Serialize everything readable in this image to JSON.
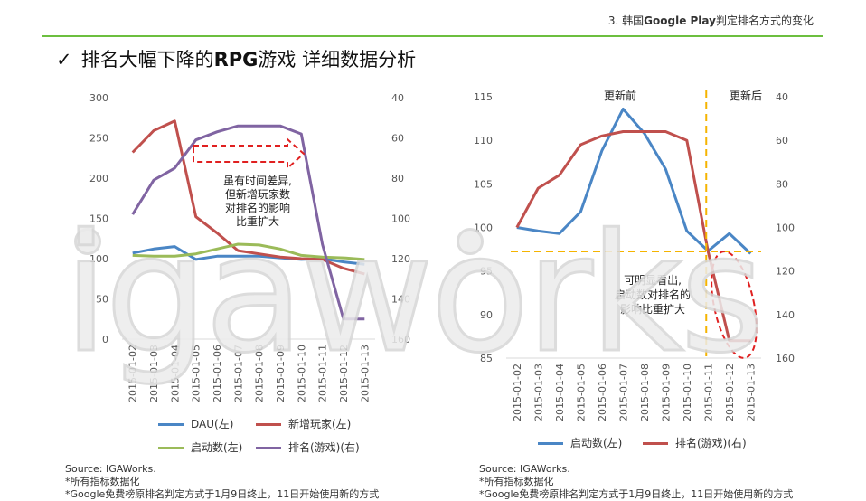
{
  "header": {
    "section_prefix": "3. 韩国",
    "section_bold": "Google Play",
    "section_suffix": "判定排名方式的变化",
    "title_check": "✓",
    "title_pre": "排名大幅下降的",
    "title_bold": "RPG",
    "title_post": "游戏  详细数据分析"
  },
  "watermark": "igaworks",
  "colors": {
    "blue": "#4a86c5",
    "red": "#c0504d",
    "green": "#9bbb59",
    "purple": "#8064a2",
    "orange": "#f5b400",
    "dashed_red": "#e02020",
    "rule_green": "#6cbf3f"
  },
  "chart_data": [
    {
      "type": "line",
      "x": [
        "2015-01-02",
        "2015-01-03",
        "2015-01-04",
        "2015-01-05",
        "2015-01-06",
        "2015-01-07",
        "2015-01-08",
        "2015-01-09",
        "2015-01-10",
        "2015-01-11",
        "2015-01-12",
        "2015-01-13"
      ],
      "y_left": {
        "range": [
          0,
          300
        ],
        "ticks": [
          "0",
          "50",
          "100",
          "150",
          "200",
          "250",
          "300"
        ]
      },
      "y_right": {
        "range": [
          40,
          160
        ],
        "reversed": true,
        "ticks": [
          "40",
          "60",
          "80",
          "100",
          "120",
          "140",
          "160"
        ]
      },
      "series": [
        {
          "name": "DAU(左)",
          "axis": "left",
          "color": "#4a86c5",
          "values": [
            107,
            112,
            115,
            99,
            103,
            103,
            103,
            101,
            99,
            100,
            96,
            93
          ]
        },
        {
          "name": "新增玩家(左)",
          "axis": "left",
          "color": "#c0504d",
          "values": [
            232,
            259,
            271,
            152,
            132,
            110,
            106,
            102,
            100,
            99,
            88,
            81
          ]
        },
        {
          "name": "启动数(左)",
          "axis": "left",
          "color": "#9bbb59",
          "values": [
            104,
            103,
            103,
            106,
            112,
            118,
            117,
            112,
            104,
            102,
            101,
            99
          ]
        },
        {
          "name": "排名(游戏)(右)",
          "axis": "right",
          "color": "#8064a2",
          "values": [
            98,
            81,
            75,
            61,
            57,
            54,
            54,
            54,
            58,
            113,
            150,
            150
          ]
        }
      ],
      "annotation": [
        "虽有时间差异,",
        "但新增玩家数",
        "对排名的影响",
        "比重扩大"
      ]
    },
    {
      "type": "line",
      "x": [
        "2015-01-02",
        "2015-01-03",
        "2015-01-04",
        "2015-01-05",
        "2015-01-06",
        "2015-01-07",
        "2015-01-08",
        "2015-01-09",
        "2015-01-10",
        "2015-01-11",
        "2015-01-12",
        "2015-01-13"
      ],
      "y_left": {
        "range": [
          85,
          115
        ],
        "ticks": [
          "85",
          "90",
          "95",
          "100",
          "105",
          "110",
          "115"
        ]
      },
      "y_right": {
        "range": [
          40,
          160
        ],
        "reversed": true,
        "ticks": [
          "40",
          "60",
          "80",
          "100",
          "120",
          "140",
          "160"
        ]
      },
      "series": [
        {
          "name": "启动数(左)",
          "axis": "left",
          "color": "#4a86c5",
          "values": [
            100,
            99.6,
            99.3,
            101.8,
            108.8,
            113.6,
            110.8,
            106.7,
            99.6,
            97.3,
            99.3,
            97.0
          ]
        },
        {
          "name": "排名(游戏)(右)",
          "axis": "right",
          "color": "#c0504d",
          "values": [
            100,
            82,
            76,
            62,
            58,
            56,
            56,
            56,
            60,
            111,
            152,
            152
          ]
        }
      ],
      "period_labels": [
        "更新前",
        "更新后"
      ],
      "annotation": [
        "可明显看出,",
        "启动数对排名的",
        "影响比重扩大"
      ]
    }
  ],
  "footer": [
    [
      "Source: IGAWorks.",
      "*所有指标数据化",
      "*Google免费榜原排名判定方式于1月9日终止，11日开始使用新的方式"
    ],
    [
      "Source: IGAWorks.",
      "*所有指标数据化",
      "*Google免费榜原排名判定方式于1月9日终止，11日开始使用新的方式"
    ]
  ]
}
